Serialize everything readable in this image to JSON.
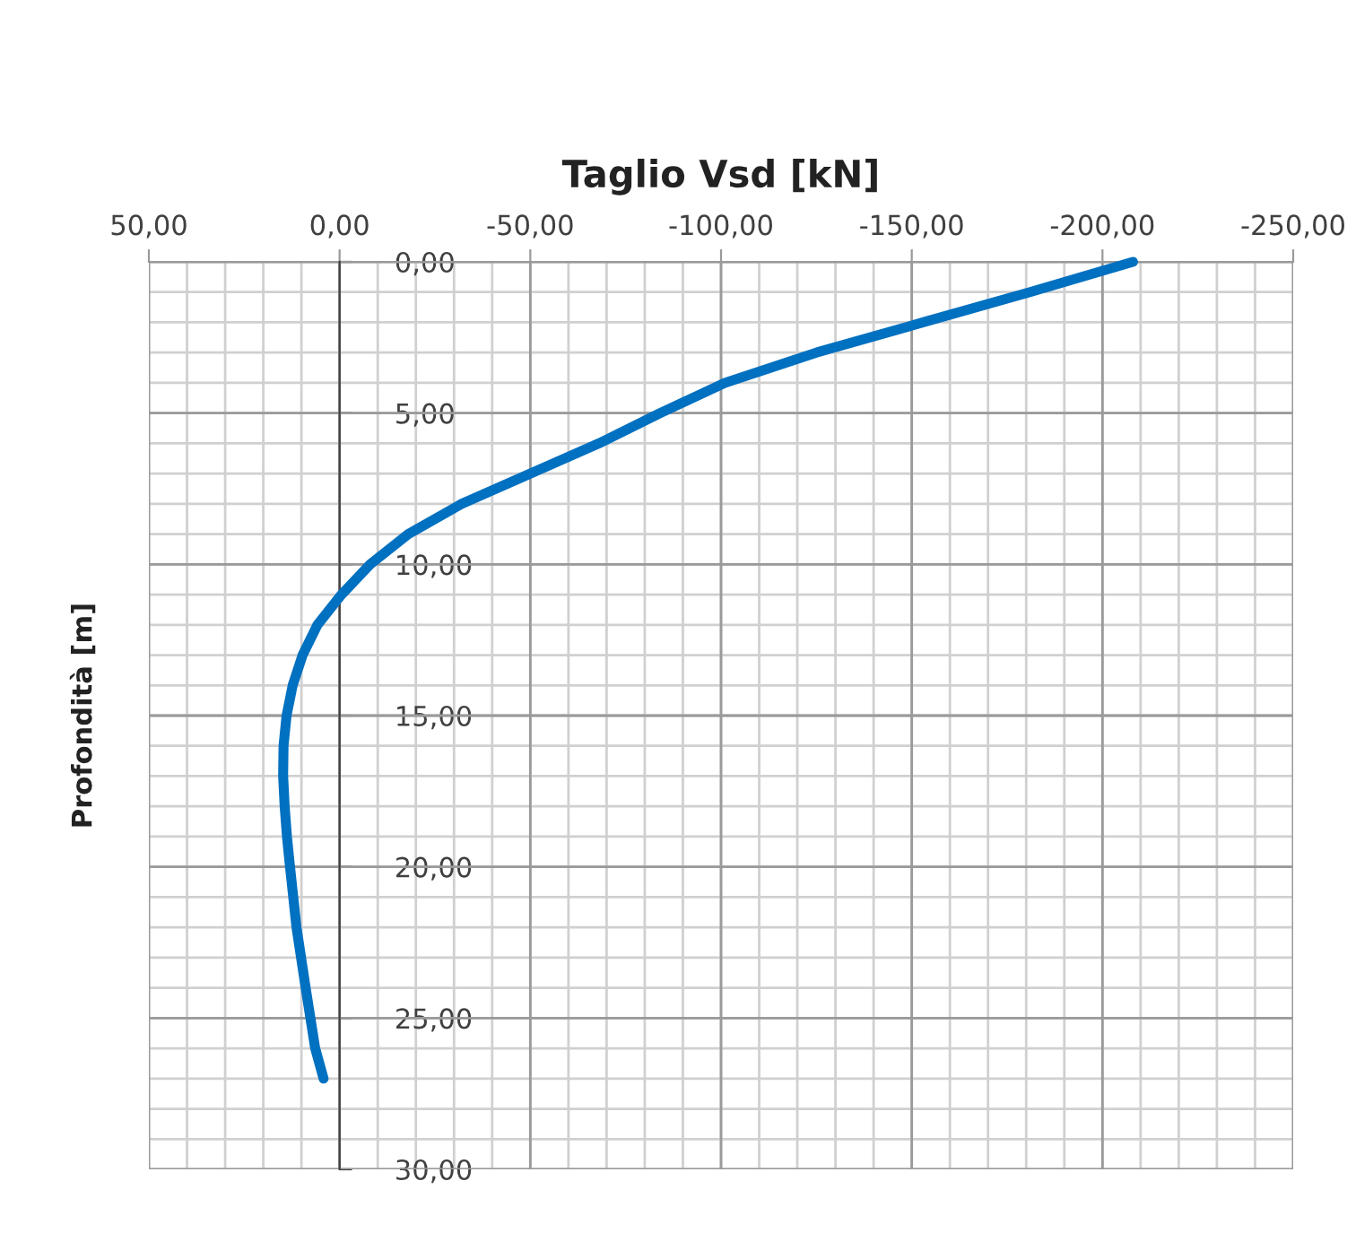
{
  "chart_data": {
    "type": "line",
    "title": "Taglio Vsd [kN]",
    "ylabel": "Profondità [m]",
    "xlim": [
      50,
      -250
    ],
    "xticks": [
      {
        "value": 50,
        "label": "50,00"
      },
      {
        "value": 0,
        "label": "0,00"
      },
      {
        "value": -50,
        "label": "-50,00"
      },
      {
        "value": -100,
        "label": "-100,00"
      },
      {
        "value": -150,
        "label": "-150,00"
      },
      {
        "value": -200,
        "label": "-200,00"
      },
      {
        "value": -250,
        "label": "-250,00"
      }
    ],
    "ylim": [
      30,
      0
    ],
    "yticks": [
      {
        "value": 0,
        "label": "0,00"
      },
      {
        "value": 5,
        "label": "5,00"
      },
      {
        "value": 10,
        "label": "10,00"
      },
      {
        "value": 15,
        "label": "15,00"
      },
      {
        "value": 20,
        "label": "20,00"
      },
      {
        "value": 25,
        "label": "25,00"
      },
      {
        "value": 30,
        "label": "30,00"
      }
    ],
    "grid": true,
    "marker": "none",
    "line_style": "solid",
    "series": [
      {
        "color": "#0070c0",
        "x": [
          -208,
          -181,
          -153,
          -125,
          -101,
          -84,
          -68,
          -50,
          -32,
          -18,
          -8,
          -0.5,
          5.8,
          9.7,
          12.3,
          13.9,
          14.7,
          14.8,
          14.4,
          13.8,
          13.0,
          11.3,
          8.9,
          6.4,
          4.2
        ],
        "values": [
          0,
          1,
          2,
          3,
          4,
          5,
          6,
          7,
          8,
          9,
          10,
          11,
          12,
          13,
          14,
          15,
          16,
          17,
          18,
          19,
          20,
          22,
          24,
          26,
          27
        ]
      }
    ]
  }
}
